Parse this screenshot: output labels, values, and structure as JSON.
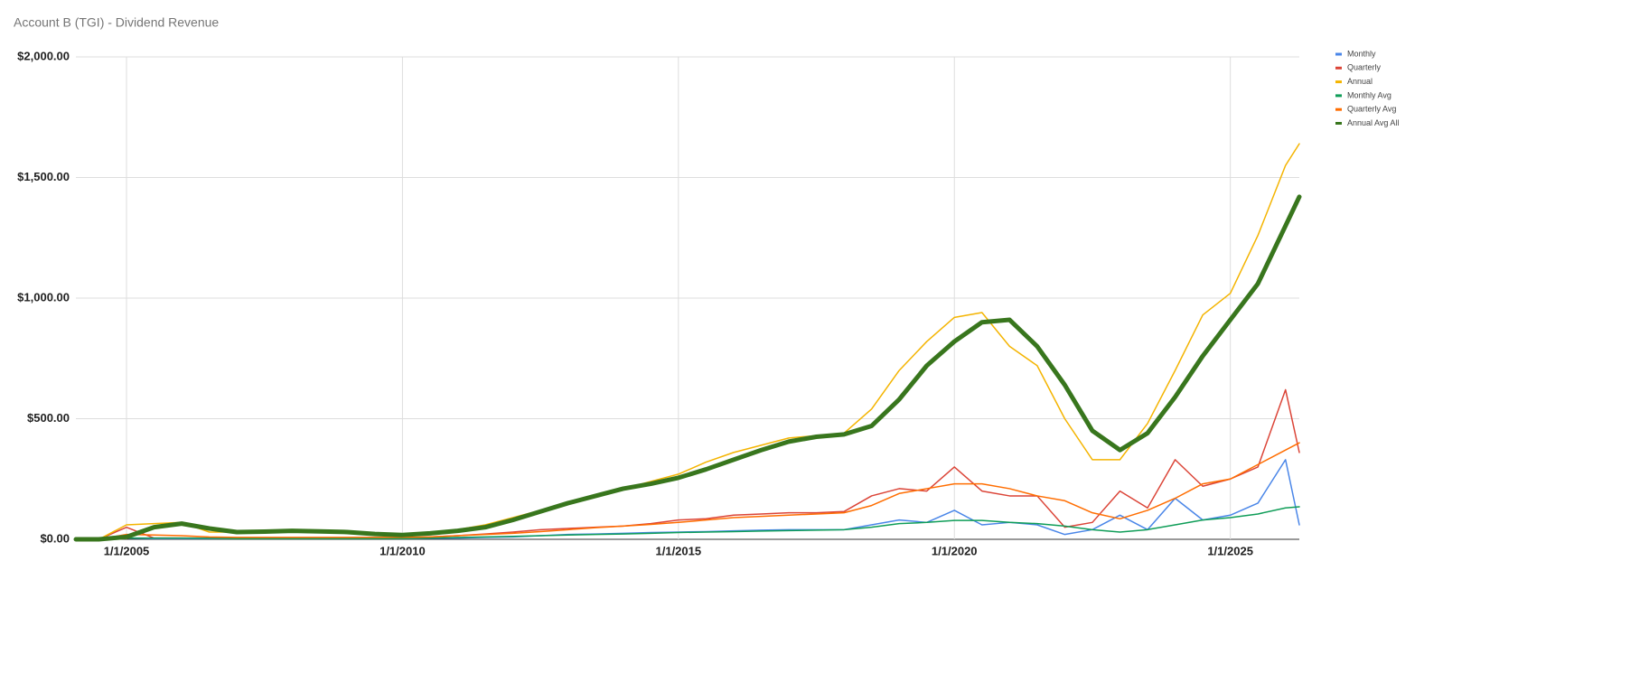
{
  "chart_data": {
    "type": "line",
    "title": "Account B (TGI) - Dividend Revenue",
    "x": [
      "2/1/2004",
      "7/1/2004",
      "1/1/2005",
      "7/1/2005",
      "1/1/2006",
      "7/1/2006",
      "1/1/2007",
      "7/1/2007",
      "1/1/2008",
      "7/1/2008",
      "1/1/2009",
      "7/1/2009",
      "1/1/2010",
      "7/1/2010",
      "1/1/2011",
      "7/1/2011",
      "1/1/2012",
      "7/1/2012",
      "1/1/2013",
      "7/1/2013",
      "1/1/2014",
      "7/1/2014",
      "1/1/2015",
      "7/1/2015",
      "1/1/2016",
      "7/1/2016",
      "1/1/2017",
      "7/1/2017",
      "1/1/2018",
      "7/1/2018",
      "1/1/2019",
      "7/1/2019",
      "1/1/2020",
      "7/1/2020",
      "1/1/2021",
      "7/1/2021",
      "1/1/2022",
      "7/1/2022",
      "1/1/2023",
      "7/1/2023",
      "1/1/2024",
      "7/1/2024",
      "1/1/2025",
      "7/1/2025",
      "1/1/2026",
      "4/1/2026"
    ],
    "series": [
      {
        "name": "Monthly",
        "color": "#4a86e8",
        "line_width": 1.5,
        "values": [
          0,
          0,
          5,
          3,
          3,
          3,
          3,
          3,
          3,
          3,
          3,
          3,
          3,
          4,
          5,
          8,
          10,
          15,
          20,
          22,
          25,
          28,
          30,
          32,
          35,
          38,
          40,
          40,
          40,
          60,
          80,
          70,
          120,
          60,
          70,
          60,
          20,
          40,
          100,
          40,
          170,
          80,
          100,
          150,
          330,
          60
        ]
      },
      {
        "name": "Quarterly",
        "color": "#db4437",
        "line_width": 1.5,
        "values": [
          0,
          0,
          50,
          5,
          5,
          5,
          5,
          5,
          5,
          5,
          5,
          5,
          5,
          10,
          15,
          22,
          30,
          40,
          45,
          50,
          55,
          65,
          80,
          85,
          100,
          105,
          110,
          110,
          115,
          180,
          210,
          200,
          300,
          200,
          180,
          180,
          50,
          70,
          200,
          130,
          330,
          220,
          250,
          300,
          620,
          360
        ]
      },
      {
        "name": "Annual",
        "color": "#f4b400",
        "line_width": 1.5,
        "values": [
          0,
          0,
          60,
          65,
          70,
          30,
          30,
          30,
          30,
          30,
          25,
          20,
          15,
          30,
          40,
          60,
          90,
          120,
          150,
          180,
          210,
          240,
          270,
          320,
          360,
          390,
          420,
          430,
          440,
          540,
          700,
          820,
          920,
          940,
          800,
          720,
          500,
          330,
          330,
          480,
          700,
          930,
          1020,
          1260,
          1550,
          1640
        ]
      },
      {
        "name": "Monthly Avg",
        "color": "#0f9d58",
        "line_width": 1.5,
        "values": [
          0,
          0,
          5,
          5,
          5,
          4,
          3,
          3,
          3,
          3,
          3,
          3,
          3,
          5,
          8,
          10,
          12,
          15,
          18,
          20,
          22,
          25,
          28,
          30,
          32,
          34,
          36,
          38,
          40,
          50,
          65,
          70,
          78,
          78,
          70,
          65,
          55,
          40,
          30,
          40,
          60,
          80,
          90,
          105,
          130,
          135
        ]
      },
      {
        "name": "Quarterly Avg",
        "color": "#ff6d00",
        "line_width": 1.5,
        "values": [
          0,
          0,
          20,
          18,
          15,
          10,
          8,
          8,
          8,
          8,
          8,
          8,
          8,
          10,
          15,
          20,
          25,
          32,
          40,
          48,
          55,
          62,
          70,
          80,
          90,
          95,
          100,
          105,
          110,
          140,
          190,
          210,
          230,
          230,
          210,
          180,
          160,
          110,
          85,
          120,
          170,
          230,
          250,
          310,
          370,
          400
        ]
      },
      {
        "name": "Annual Avg All",
        "color": "#38761d",
        "line_width": 5,
        "values": [
          0,
          0,
          10,
          50,
          65,
          45,
          30,
          32,
          35,
          33,
          30,
          22,
          18,
          25,
          35,
          50,
          80,
          115,
          150,
          180,
          210,
          230,
          255,
          290,
          330,
          370,
          405,
          425,
          435,
          470,
          580,
          720,
          820,
          900,
          910,
          800,
          640,
          450,
          370,
          440,
          590,
          760,
          910,
          1060,
          1300,
          1420
        ]
      }
    ],
    "xlim": [
      "2/1/2004",
      "4/1/2026"
    ],
    "xticks": [
      "1/1/2005",
      "1/1/2010",
      "1/1/2015",
      "1/1/2020",
      "1/1/2025"
    ],
    "ylim": [
      0,
      2000
    ],
    "yticks": [
      {
        "value": 0,
        "label": "$0.00"
      },
      {
        "value": 500,
        "label": "$500.00"
      },
      {
        "value": 1000,
        "label": "$1,000.00"
      },
      {
        "value": 1500,
        "label": "$1,500.00"
      },
      {
        "value": 2000,
        "label": "$2,000.00"
      }
    ],
    "grid": true,
    "legend": "right"
  }
}
